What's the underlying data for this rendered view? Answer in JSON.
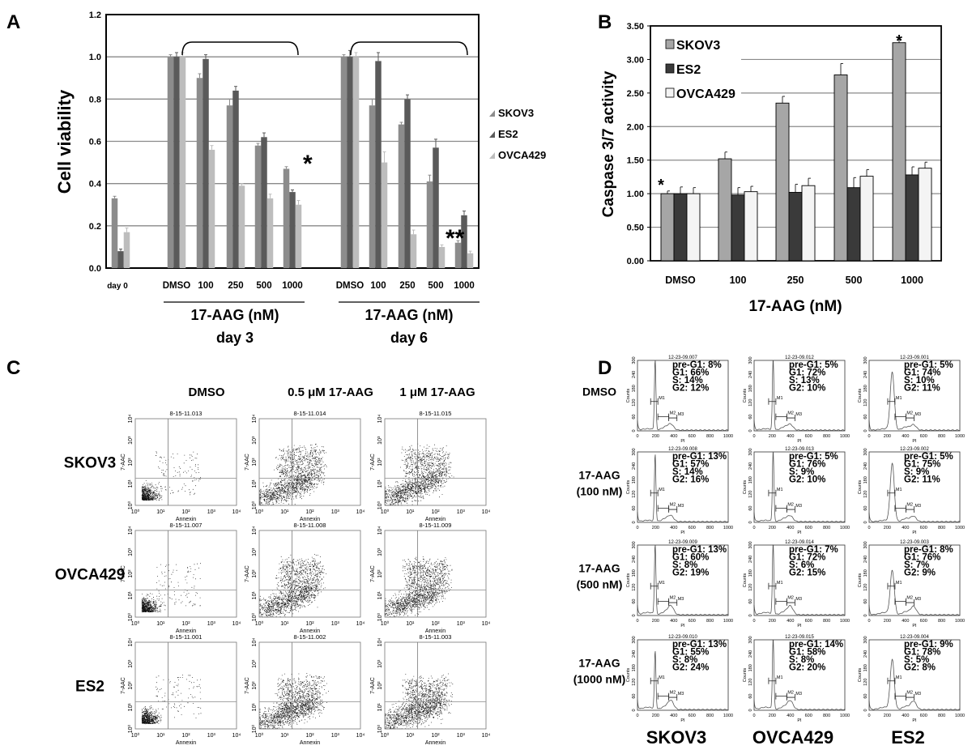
{
  "panels": {
    "A": "A",
    "B": "B",
    "C": "C",
    "D": "D"
  },
  "chart_data": [
    {
      "type": "bar",
      "panel": "A",
      "ylabel": "Cell viability",
      "ylim": [
        0,
        1.2
      ],
      "yticks": [
        "0.0",
        "0.2",
        "0.4",
        "0.6",
        "0.8",
        "1.0",
        "1.2"
      ],
      "grid": true,
      "legend_position": "right",
      "categories": [
        "day 0",
        "DMSO",
        "100",
        "250",
        "500",
        "1000",
        "DMSO",
        "100",
        "250",
        "500",
        "1000"
      ],
      "group_labels": [
        {
          "title": "17-AAG (nM)",
          "subtitle": "day 3"
        },
        {
          "title": "17-AAG (nM)",
          "subtitle": "day 6"
        }
      ],
      "series": [
        {
          "name": "SKOV3",
          "color": "#8c8c8c",
          "values": [
            0.33,
            1.0,
            0.9,
            0.77,
            0.58,
            0.47,
            1.0,
            0.77,
            0.68,
            0.41,
            0.12
          ],
          "errors": [
            0.01,
            0.01,
            0.02,
            0.03,
            0.01,
            0.01,
            0.01,
            0.03,
            0.01,
            0.03,
            0.01
          ]
        },
        {
          "name": "ES2",
          "color": "#5a5a5a",
          "values": [
            0.08,
            1.0,
            0.99,
            0.84,
            0.62,
            0.36,
            1.0,
            0.98,
            0.8,
            0.57,
            0.25
          ],
          "errors": [
            0.01,
            0.02,
            0.02,
            0.02,
            0.02,
            0.01,
            0.03,
            0.04,
            0.02,
            0.04,
            0.02
          ]
        },
        {
          "name": "OVCA429",
          "color": "#bdbdbd",
          "values": [
            0.17,
            1.0,
            0.56,
            0.39,
            0.33,
            0.3,
            1.0,
            0.5,
            0.16,
            0.1,
            0.07
          ],
          "errors": [
            0.02,
            0.02,
            0.02,
            0.01,
            0.02,
            0.02,
            0.02,
            0.05,
            0.02,
            0.01,
            0.01
          ]
        }
      ],
      "annotations": [
        {
          "text": "*",
          "category_index": 5
        },
        {
          "text": "**",
          "category_index": 10
        }
      ]
    },
    {
      "type": "bar",
      "panel": "B",
      "ylabel": "Caspase 3/7 activity",
      "xlabel": "17-AAG (nM)",
      "ylim": [
        0,
        3.5
      ],
      "yticks": [
        "0.00",
        "0.50",
        "1.00",
        "1.50",
        "2.00",
        "2.50",
        "3.00",
        "3.50"
      ],
      "grid": true,
      "legend_position": "top-left",
      "categories": [
        "DMSO",
        "100",
        "250",
        "500",
        "1000"
      ],
      "series": [
        {
          "name": "SKOV3",
          "color": "#a6a6a6",
          "values": [
            1.0,
            1.52,
            2.35,
            2.77,
            3.25
          ],
          "errors": [
            0.04,
            0.1,
            0.1,
            0.17,
            0.05
          ]
        },
        {
          "name": "ES2",
          "color": "#3a3a3a",
          "values": [
            1.0,
            0.98,
            1.02,
            1.09,
            1.28
          ],
          "errors": [
            0.1,
            0.11,
            0.12,
            0.15,
            0.12
          ]
        },
        {
          "name": "OVCA429",
          "color": "#f4f4f4",
          "values": [
            1.0,
            1.03,
            1.12,
            1.26,
            1.38
          ],
          "errors": [
            0.09,
            0.08,
            0.11,
            0.1,
            0.09
          ]
        }
      ],
      "annotations": [
        {
          "text": "*",
          "category_index": 0
        },
        {
          "text": "*",
          "category_index": 4
        }
      ]
    }
  ],
  "panel_c": {
    "column_headers": [
      "DMSO",
      "0.5 μM 17-AAG",
      "1 μM 17-AAG"
    ],
    "row_labels": [
      "SKOV3",
      "OVCA429",
      "ES2"
    ],
    "x_axis_label": "Annexin",
    "y_axis_label": "7-AAC",
    "axis_ticks": [
      "10⁰",
      "10¹",
      "10²",
      "10³",
      "10⁴"
    ],
    "plot_ids": [
      [
        "8-15-11.013",
        "8-15-11.014",
        "8-15-11.015"
      ],
      [
        "8-15-11.007",
        "8-15-11.008",
        "8-15-11.009"
      ],
      [
        "8-15-11.001",
        "8-15-11.002",
        "8-15-11.003"
      ]
    ]
  },
  "panel_d": {
    "row_labels": [
      [
        "DMSO"
      ],
      [
        "17-AAG",
        "(100 nM)"
      ],
      [
        "17-AAG",
        "(500 nM)"
      ],
      [
        "17-AAG",
        "(1000 nM)"
      ]
    ],
    "column_labels": [
      "SKOV3",
      "OVCA429",
      "ES2"
    ],
    "x_axis_label": "PI",
    "y_axis_label": "Counts",
    "x_ticks": [
      "0",
      "200",
      "400",
      "600",
      "800",
      "1000"
    ],
    "y_ticks": [
      "0",
      "60",
      "120",
      "180",
      "240",
      "300"
    ],
    "markers": [
      "M1",
      "M2",
      "M3"
    ],
    "plots": [
      [
        {
          "id": "12-23-09.007",
          "stats": [
            "pre-G1: 8%",
            "G1: 66%",
            "S: 14%",
            "G2: 12%"
          ]
        },
        {
          "id": "12-23-09.012",
          "stats": [
            "pre-G1: 5%",
            "G1: 72%",
            "S: 13%",
            "G2: 10%"
          ]
        },
        {
          "id": "12-23-09.001",
          "stats": [
            "pre-G1: 5%",
            "G1: 74%",
            "S: 10%",
            "G2: 11%"
          ]
        }
      ],
      [
        {
          "id": "12-23-09.008",
          "stats": [
            "pre-G1: 13%",
            "G1: 57%",
            "S: 14%",
            "G2: 16%"
          ]
        },
        {
          "id": "12-23-09.013",
          "stats": [
            "pre-G1: 5%",
            "G1: 76%",
            "S: 9%",
            "G2: 10%"
          ]
        },
        {
          "id": "12-23-09.002",
          "stats": [
            "pre-G1: 5%",
            "G1: 75%",
            "S: 9%",
            "G2: 11%"
          ]
        }
      ],
      [
        {
          "id": "12-23-09.009",
          "stats": [
            "pre-G1: 13%",
            "G1: 60%",
            "S: 8%",
            "G2: 19%"
          ]
        },
        {
          "id": "12-23-09.014",
          "stats": [
            "pre-G1: 7%",
            "G1: 72%",
            "S: 6%",
            "G2: 15%"
          ]
        },
        {
          "id": "12-23-09.003",
          "stats": [
            "pre-G1: 8%",
            "G1: 76%",
            "S: 7%",
            "G2: 9%"
          ]
        }
      ],
      [
        {
          "id": "12-23-09.010",
          "stats": [
            "pre-G1: 13%",
            "G1: 55%",
            "S: 8%",
            "G2: 24%"
          ]
        },
        {
          "id": "12-23-09.015",
          "stats": [
            "pre-G1: 14%",
            "G1: 58%",
            "S: 8%",
            "G2: 20%"
          ]
        },
        {
          "id": "12-23-09.004",
          "stats": [
            "pre-G1: 9%",
            "G1: 78%",
            "S: 5%",
            "G2: 8%"
          ]
        }
      ]
    ]
  }
}
